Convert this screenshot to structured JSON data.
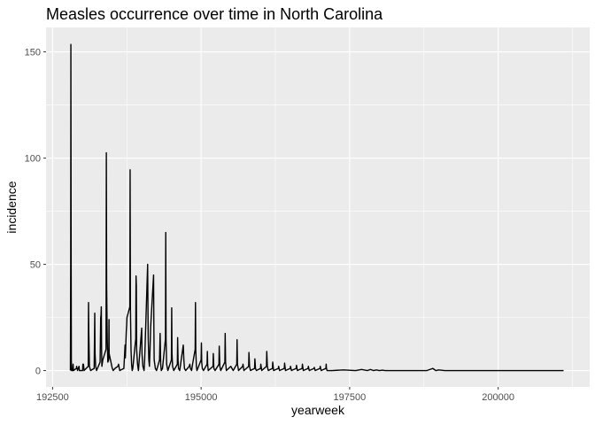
{
  "chart_data": {
    "type": "line",
    "title": "Measles occurrence over time in North Carolina",
    "xlabel": "yearweek",
    "ylabel": "incidence",
    "xlim": [
      192390,
      201540
    ],
    "ylim": [
      -7.7,
      161.5
    ],
    "x_ticks": [
      192500,
      195000,
      197500,
      200000
    ],
    "x_tick_labels": [
      "192500",
      "195000",
      "197500",
      "200000"
    ],
    "y_ticks": [
      0,
      50,
      100,
      150
    ],
    "y_tick_labels": [
      "0",
      "50",
      "100",
      "150"
    ],
    "grid": true,
    "legend": "none",
    "series": [
      {
        "values": [
          [
            192800,
            0
          ],
          [
            192805,
            48
          ],
          [
            192808,
            153.5
          ],
          [
            192812,
            60
          ],
          [
            192816,
            5
          ],
          [
            192820,
            0
          ],
          [
            192838,
            0
          ],
          [
            192845,
            3
          ],
          [
            192852,
            0
          ],
          [
            192900,
            1
          ],
          [
            192905,
            2
          ],
          [
            192920,
            0
          ],
          [
            192945,
            2
          ],
          [
            192952,
            0
          ],
          [
            193005,
            0
          ],
          [
            193010,
            3
          ],
          [
            193020,
            3
          ],
          [
            193030,
            0
          ],
          [
            193100,
            2
          ],
          [
            193105,
            32
          ],
          [
            193110,
            18
          ],
          [
            193120,
            2
          ],
          [
            193140,
            0
          ],
          [
            193200,
            1
          ],
          [
            193210,
            27
          ],
          [
            193215,
            8
          ],
          [
            193225,
            2
          ],
          [
            193240,
            0
          ],
          [
            193300,
            4
          ],
          [
            193310,
            25
          ],
          [
            193315,
            26
          ],
          [
            193320,
            30
          ],
          [
            193325,
            10
          ],
          [
            193330,
            2
          ],
          [
            193345,
            5
          ],
          [
            193400,
            10
          ],
          [
            193405,
            102.5
          ],
          [
            193410,
            40
          ],
          [
            193420,
            15
          ],
          [
            193430,
            4
          ],
          [
            193445,
            5
          ],
          [
            193450,
            24
          ],
          [
            193452,
            8
          ],
          [
            193505,
            1
          ],
          [
            193520,
            0
          ],
          [
            193550,
            1
          ],
          [
            193600,
            2
          ],
          [
            193610,
            3
          ],
          [
            193630,
            0
          ],
          [
            193700,
            1
          ],
          [
            193720,
            12
          ],
          [
            193725,
            6
          ],
          [
            193740,
            18
          ],
          [
            193748,
            22
          ],
          [
            193752,
            25
          ],
          [
            193800,
            30
          ],
          [
            193805,
            94.5
          ],
          [
            193810,
            30
          ],
          [
            193820,
            10
          ],
          [
            193830,
            3
          ],
          [
            193840,
            0
          ],
          [
            193850,
            1
          ],
          [
            193900,
            15
          ],
          [
            193905,
            44.5
          ],
          [
            193910,
            40
          ],
          [
            193915,
            10
          ],
          [
            193930,
            3
          ],
          [
            193945,
            0
          ],
          [
            194000,
            20
          ],
          [
            194005,
            8
          ],
          [
            194020,
            2
          ],
          [
            194040,
            0
          ],
          [
            194050,
            5
          ],
          [
            194100,
            50
          ],
          [
            194105,
            30
          ],
          [
            194110,
            15
          ],
          [
            194120,
            5
          ],
          [
            194130,
            2
          ],
          [
            194140,
            10
          ],
          [
            194145,
            15
          ],
          [
            194150,
            20
          ],
          [
            194200,
            45
          ],
          [
            194205,
            20
          ],
          [
            194210,
            5
          ],
          [
            194230,
            1
          ],
          [
            194250,
            0
          ],
          [
            194300,
            5
          ],
          [
            194310,
            17.5
          ],
          [
            194320,
            3
          ],
          [
            194330,
            0
          ],
          [
            194350,
            1
          ],
          [
            194400,
            15
          ],
          [
            194405,
            65
          ],
          [
            194410,
            15
          ],
          [
            194420,
            3
          ],
          [
            194440,
            0
          ],
          [
            194500,
            5
          ],
          [
            194505,
            29.5
          ],
          [
            194510,
            8
          ],
          [
            194520,
            2
          ],
          [
            194540,
            0
          ],
          [
            194600,
            3
          ],
          [
            194605,
            15.5
          ],
          [
            194612,
            5
          ],
          [
            194620,
            1
          ],
          [
            194640,
            0
          ],
          [
            194650,
            2
          ],
          [
            194700,
            12
          ],
          [
            194710,
            5
          ],
          [
            194720,
            1
          ],
          [
            194740,
            0
          ],
          [
            194800,
            2
          ],
          [
            194810,
            3
          ],
          [
            194820,
            1
          ],
          [
            194840,
            0
          ],
          [
            194850,
            2
          ],
          [
            194900,
            10
          ],
          [
            194905,
            32
          ],
          [
            194910,
            10
          ],
          [
            194920,
            2
          ],
          [
            194930,
            0
          ],
          [
            195000,
            5
          ],
          [
            195005,
            13
          ],
          [
            195010,
            4
          ],
          [
            195020,
            1
          ],
          [
            195040,
            0
          ],
          [
            195100,
            3
          ],
          [
            195105,
            9
          ],
          [
            195110,
            3
          ],
          [
            195120,
            0
          ],
          [
            195200,
            2
          ],
          [
            195205,
            8
          ],
          [
            195215,
            1
          ],
          [
            195235,
            0
          ],
          [
            195300,
            3
          ],
          [
            195305,
            11.5
          ],
          [
            195315,
            2
          ],
          [
            195330,
            0
          ],
          [
            195400,
            4
          ],
          [
            195405,
            17.5
          ],
          [
            195412,
            4
          ],
          [
            195425,
            0
          ],
          [
            195500,
            2
          ],
          [
            195520,
            1
          ],
          [
            195540,
            0
          ],
          [
            195600,
            3
          ],
          [
            195605,
            14.5
          ],
          [
            195612,
            3
          ],
          [
            195630,
            0
          ],
          [
            195700,
            2
          ],
          [
            195705,
            3
          ],
          [
            195720,
            0
          ],
          [
            195800,
            2
          ],
          [
            195805,
            8.5
          ],
          [
            195815,
            2
          ],
          [
            195830,
            0
          ],
          [
            195900,
            1
          ],
          [
            195905,
            5.5
          ],
          [
            195915,
            1
          ],
          [
            195930,
            0
          ],
          [
            196000,
            1
          ],
          [
            196005,
            3
          ],
          [
            196020,
            0
          ],
          [
            196100,
            2
          ],
          [
            196105,
            9
          ],
          [
            196115,
            2
          ],
          [
            196130,
            0
          ],
          [
            196200,
            1
          ],
          [
            196205,
            4
          ],
          [
            196220,
            0
          ],
          [
            196300,
            1
          ],
          [
            196305,
            2
          ],
          [
            196320,
            0
          ],
          [
            196400,
            1
          ],
          [
            196405,
            3.5
          ],
          [
            196420,
            0
          ],
          [
            196500,
            1
          ],
          [
            196505,
            2
          ],
          [
            196520,
            0
          ],
          [
            196600,
            1
          ],
          [
            196605,
            2.5
          ],
          [
            196620,
            0
          ],
          [
            196700,
            1
          ],
          [
            196705,
            3
          ],
          [
            196720,
            0
          ],
          [
            196800,
            1
          ],
          [
            196805,
            2
          ],
          [
            196820,
            0
          ],
          [
            196900,
            1
          ],
          [
            196905,
            1.5
          ],
          [
            196920,
            0
          ],
          [
            197000,
            1
          ],
          [
            197005,
            2
          ],
          [
            197020,
            0
          ],
          [
            197100,
            1
          ],
          [
            197105,
            3
          ],
          [
            197110,
            1
          ],
          [
            197120,
            0
          ],
          [
            197200,
            0
          ],
          [
            197400,
            0.3
          ],
          [
            197600,
            0
          ],
          [
            197700,
            0.5
          ],
          [
            197800,
            0
          ],
          [
            197850,
            0.5
          ],
          [
            197900,
            0
          ],
          [
            197950,
            0.3
          ],
          [
            198000,
            0
          ],
          [
            198050,
            0.2
          ],
          [
            198100,
            0
          ],
          [
            198500,
            0
          ],
          [
            198800,
            0
          ],
          [
            198900,
            1
          ],
          [
            198950,
            0
          ],
          [
            199000,
            0.3
          ],
          [
            199100,
            0
          ],
          [
            201100,
            0
          ]
        ]
      }
    ]
  }
}
